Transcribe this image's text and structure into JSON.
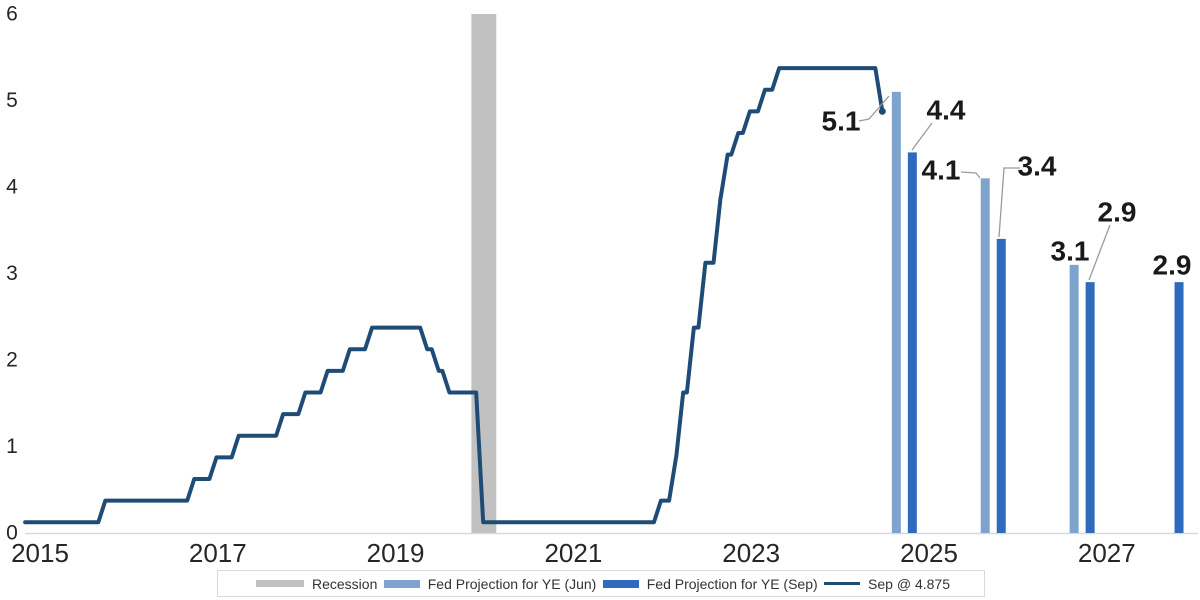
{
  "colors": {
    "line": "#1e4c77",
    "jun_bar": "#7ea4cd",
    "sep_bar": "#2e6bbd",
    "recession": "#c1c1c1",
    "axis_line": "#d9d9d9",
    "leader": "#9a9a9a",
    "tick_text": "#262626",
    "label_text": "#1a1a1a",
    "legend_border": "#d9d9d9",
    "legend_text": "#333333"
  },
  "chart_data": {
    "type": "line+bar",
    "title": "",
    "xlabel": "",
    "ylabel": "",
    "grid": false,
    "legend_position": "bottom",
    "y_axis": {
      "min": 0,
      "max": 6,
      "ticks": [
        0,
        1,
        2,
        3,
        4,
        5,
        6
      ]
    },
    "x_axis": {
      "ticks": [
        "2015",
        "2017",
        "2019",
        "2021",
        "2023",
        "2025",
        "2027"
      ]
    },
    "recession_band": {
      "label": "Recession",
      "start_year": 2020.1,
      "end_year": 2020.38
    },
    "rate_line": {
      "name": "Sep @ 4.875",
      "end_value": 4.875,
      "points": [
        [
          2015.08,
          0.125
        ],
        [
          2015.96,
          0.375
        ],
        [
          2016.96,
          0.625
        ],
        [
          2017.21,
          0.875
        ],
        [
          2017.46,
          1.125
        ],
        [
          2017.96,
          1.375
        ],
        [
          2018.21,
          1.625
        ],
        [
          2018.46,
          1.875
        ],
        [
          2018.71,
          2.125
        ],
        [
          2018.96,
          2.375
        ],
        [
          2019.58,
          2.125
        ],
        [
          2019.71,
          1.875
        ],
        [
          2019.83,
          1.625
        ],
        [
          2020.21,
          0.125
        ],
        [
          2022.21,
          0.375
        ],
        [
          2022.38,
          0.875
        ],
        [
          2022.46,
          1.625
        ],
        [
          2022.58,
          2.375
        ],
        [
          2022.71,
          3.125
        ],
        [
          2022.88,
          3.875
        ],
        [
          2022.96,
          4.375
        ],
        [
          2023.08,
          4.625
        ],
        [
          2023.21,
          4.875
        ],
        [
          2023.38,
          5.125
        ],
        [
          2023.54,
          5.375
        ],
        [
          2024.7,
          4.875
        ]
      ]
    },
    "projections": [
      {
        "year": 2024,
        "jun": 5.1,
        "sep": 4.4
      },
      {
        "year": 2025,
        "jun": 4.1,
        "sep": 3.4
      },
      {
        "year": 2026,
        "jun": 3.1,
        "sep": 2.9
      },
      {
        "year": 2027,
        "jun": null,
        "sep": 2.9
      }
    ],
    "legend": [
      {
        "swatch": "recession",
        "label": "Recession"
      },
      {
        "swatch": "jun_bar",
        "label": "Fed Projection for YE (Jun)"
      },
      {
        "swatch": "sep_bar",
        "label": "Fed Projection for YE (Sep)"
      },
      {
        "swatch": "line",
        "label": "Sep @ 4.875"
      }
    ]
  }
}
